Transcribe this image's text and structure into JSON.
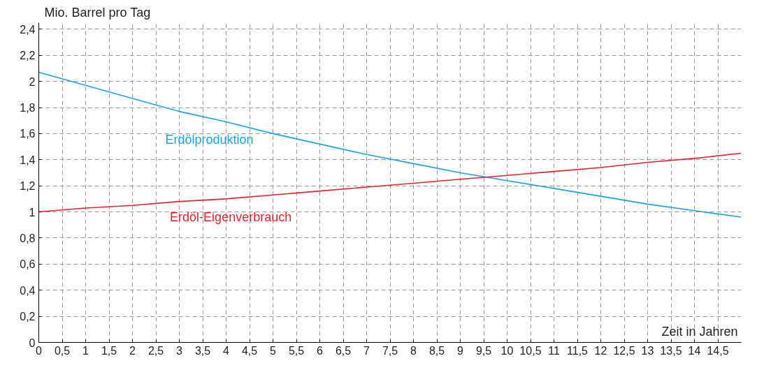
{
  "chart_data": {
    "type": "line",
    "x": [
      0,
      1,
      2,
      3,
      4,
      5,
      6,
      7,
      8,
      9,
      10,
      11,
      12,
      13,
      14,
      15
    ],
    "series": [
      {
        "name": "Erdölproduktion",
        "color": "#1aa3e0",
        "values": [
          2.07,
          1.97,
          1.87,
          1.77,
          1.69,
          1.6,
          1.52,
          1.44,
          1.37,
          1.3,
          1.24,
          1.18,
          1.12,
          1.06,
          1.01,
          0.96
        ]
      },
      {
        "name": "Erdöl-Eigenverbrauch",
        "color": "#e8222b",
        "values": [
          1.0,
          1.03,
          1.05,
          1.08,
          1.1,
          1.13,
          1.16,
          1.19,
          1.22,
          1.25,
          1.28,
          1.31,
          1.34,
          1.38,
          1.41,
          1.45
        ]
      }
    ],
    "xlabel": "Zeit in Jahren",
    "ylabel": "Mio. Barrel pro Tag",
    "xlim": [
      0,
      15
    ],
    "ylim": [
      0,
      2.45
    ],
    "xticks": [
      0,
      {
        "value": 0.5,
        "label": "0,5"
      },
      1,
      {
        "value": 1.5,
        "label": "1,5"
      },
      2,
      {
        "value": 2.5,
        "label": "2,5"
      },
      3,
      {
        "value": 3.5,
        "label": "3,5"
      },
      4,
      {
        "value": 4.5,
        "label": "4,5"
      },
      5,
      {
        "value": 5.5,
        "label": "5,5"
      },
      6,
      {
        "value": 6.5,
        "label": "6,5"
      },
      7,
      {
        "value": 7.5,
        "label": "7,5"
      },
      8,
      {
        "value": 8.5,
        "label": "8,5"
      },
      9,
      {
        "value": 9.5,
        "label": "9,5"
      },
      10,
      {
        "value": 10.5,
        "label": "10,5"
      },
      11,
      {
        "value": 11.5,
        "label": "11,5"
      },
      12,
      {
        "value": 12.5,
        "label": "12,5"
      },
      13,
      {
        "value": 13.5,
        "label": "13,5"
      },
      14,
      {
        "value": 14.5,
        "label": "14,5"
      }
    ],
    "yticks": [
      0,
      {
        "value": 0.2,
        "label": "0,2"
      },
      {
        "value": 0.4,
        "label": "0,4"
      },
      {
        "value": 0.6,
        "label": "0,6"
      },
      {
        "value": 0.8,
        "label": "0,8"
      },
      1,
      {
        "value": 1.2,
        "label": "1,2"
      },
      {
        "value": 1.4,
        "label": "1,4"
      },
      {
        "value": 1.6,
        "label": "1,6"
      },
      {
        "value": 1.8,
        "label": "1,8"
      },
      2,
      {
        "value": 2.2,
        "label": "2,2"
      },
      {
        "value": 2.4,
        "label": "2,4"
      }
    ],
    "grid": true,
    "marker": "none",
    "line_style": "solid",
    "legend": false
  }
}
